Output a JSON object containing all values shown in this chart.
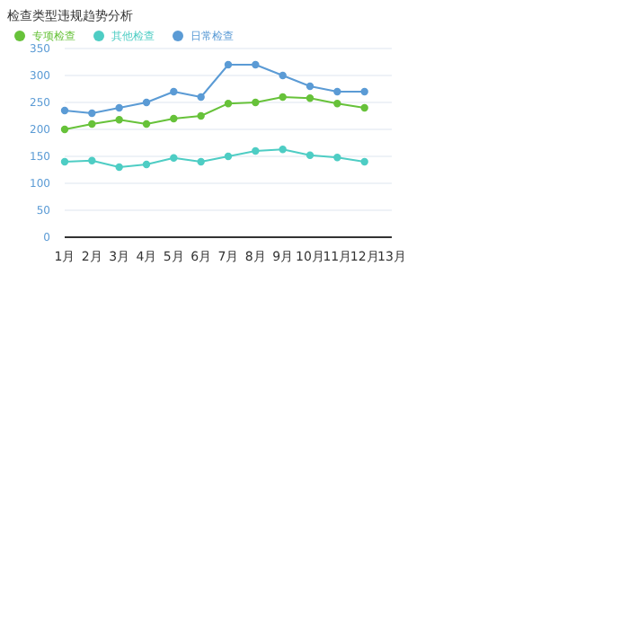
{
  "chart_data": {
    "type": "line",
    "title": "检查类型违规趋势分析",
    "categories": [
      "1月",
      "2月",
      "3月",
      "4月",
      "5月",
      "6月",
      "7月",
      "8月",
      "9月",
      "10月",
      "11月",
      "12月",
      "13月"
    ],
    "series": [
      {
        "name": "日常检查",
        "color": "#5b9bd5",
        "values": [
          235,
          230,
          240,
          250,
          270,
          260,
          320,
          320,
          300,
          280,
          270,
          270,
          null
        ]
      },
      {
        "name": "专项检查",
        "color": "#67c23a",
        "values": [
          200,
          210,
          218,
          210,
          220,
          225,
          248,
          250,
          260,
          258,
          248,
          240,
          null
        ]
      },
      {
        "name": "其他检查",
        "color": "#4ecdc4",
        "values": [
          140,
          142,
          130,
          135,
          147,
          140,
          150,
          160,
          163,
          152,
          148,
          140,
          null
        ]
      }
    ],
    "ylim": [
      0,
      350
    ],
    "yticks": [
      0,
      50,
      100,
      150,
      200,
      250,
      300,
      350
    ],
    "grid": "y",
    "legend": "top left",
    "marker": "circle",
    "line_style": "solid"
  }
}
